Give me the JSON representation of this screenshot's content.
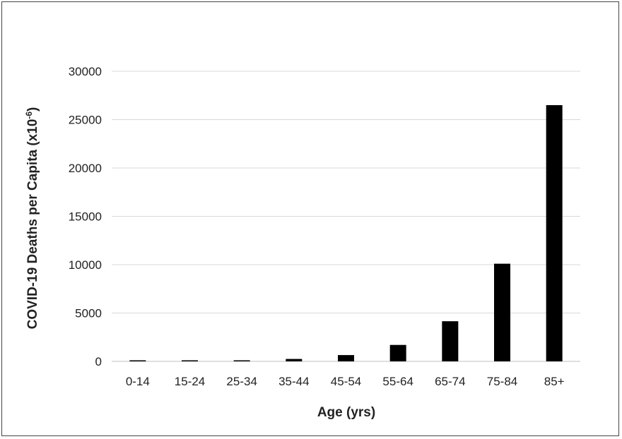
{
  "chart_data": {
    "type": "bar",
    "title": "",
    "xlabel": "Age (yrs)",
    "ylabel": "COVID-19 Deaths per Capita (x10",
    "ylabel_superscript": "-6",
    "ylabel_close": ")",
    "categories": [
      "0-14",
      "15-24",
      "25-34",
      "35-44",
      "45-54",
      "55-64",
      "65-74",
      "75-84",
      "85+"
    ],
    "values": [
      10,
      30,
      80,
      250,
      650,
      1700,
      4150,
      10100,
      26500
    ],
    "ylim": [
      0,
      30000
    ],
    "yticks": [
      0,
      5000,
      10000,
      15000,
      20000,
      25000,
      30000
    ],
    "grid": true,
    "legend": "none",
    "bar_color": "#000000",
    "grid_color": "#d9d9d9"
  }
}
